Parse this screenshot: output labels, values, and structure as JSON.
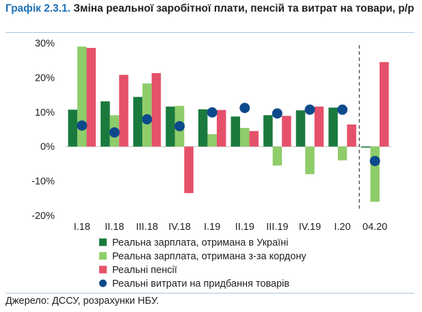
{
  "title": {
    "prefix": "Графік 2.3.1.",
    "text": "Зміна реальної заробітної плати, пенсій та витрат на товари, р/р"
  },
  "source": "Джерело: ДССУ, розрахунки НБУ.",
  "colors": {
    "wages_ukraine": "#1a7a3e",
    "wages_abroad": "#8fcc6a",
    "pensions": "#e5516b",
    "consumption": "#0d4a8c",
    "title_accent": "#1f6fb5",
    "rule": "#a8c4dd"
  },
  "chart_data": {
    "type": "bar",
    "title": "Зміна реальної заробітної плати, пенсій та витрат на товари, р/р",
    "xlabel": "",
    "ylabel": "",
    "ylim": [
      -20,
      30
    ],
    "yticks": [
      -20,
      -10,
      0,
      10,
      20,
      30
    ],
    "ytick_labels": [
      "-20%",
      "-10%",
      "0%",
      "10%",
      "20%",
      "30%"
    ],
    "categories": [
      "I.18",
      "II.18",
      "III.18",
      "IV.18",
      "I.19",
      "II.19",
      "III.19",
      "IV.19",
      "I.20",
      "04.20"
    ],
    "separator_before": "04.20",
    "series": [
      {
        "name": "Реальна зарплата, отримана в Україні",
        "kind": "bar",
        "color": "#1a7a3e",
        "values": [
          10.7,
          13.1,
          14.4,
          11.6,
          10.8,
          8.7,
          9.1,
          10.5,
          11.3,
          -0.3
        ]
      },
      {
        "name": "Реальна зарплата, отримана з-за кордону",
        "kind": "bar",
        "color": "#8fcc6a",
        "values": [
          29.0,
          9.1,
          18.3,
          11.8,
          3.6,
          5.4,
          -5.5,
          -8.0,
          -4.0,
          -16.0
        ]
      },
      {
        "name": "Реальні пенсії",
        "kind": "bar",
        "color": "#e5516b",
        "values": [
          28.6,
          20.8,
          21.3,
          -13.5,
          10.6,
          4.5,
          8.9,
          11.6,
          6.4,
          24.5
        ]
      },
      {
        "name": "Реальні витрати на придбання товарів",
        "kind": "marker",
        "color": "#0d4a8c",
        "values": [
          6.1,
          4.1,
          7.9,
          5.9,
          9.9,
          11.2,
          9.6,
          10.7,
          10.7,
          -4.2
        ]
      }
    ],
    "legend_position": "bottom"
  }
}
